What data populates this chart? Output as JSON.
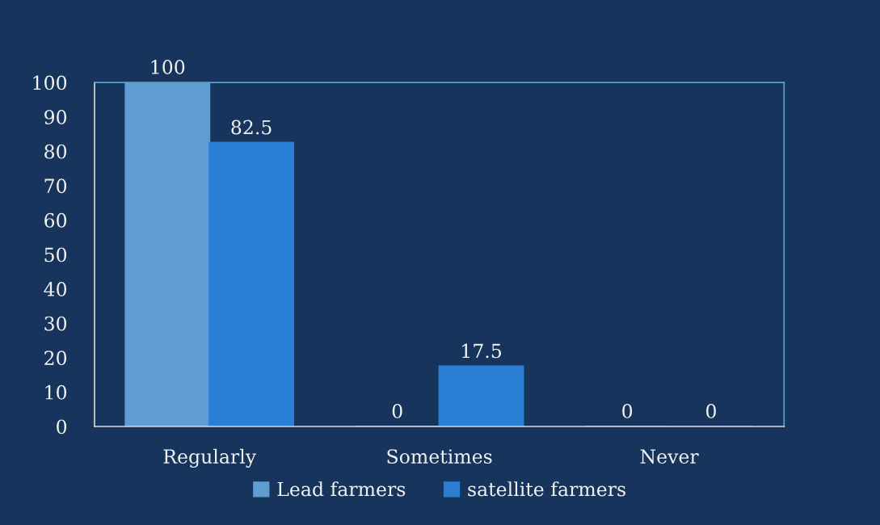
{
  "chart_data": {
    "type": "bar",
    "categories": [
      "Regularly",
      "Sometimes",
      "Never"
    ],
    "series": [
      {
        "name": "Lead farmers",
        "color": "#5f9dd1",
        "values": [
          100,
          0,
          0
        ]
      },
      {
        "name": "satellite farmers",
        "color": "#2a7fd5",
        "values": [
          82.5,
          17.5,
          0
        ]
      }
    ],
    "ylim": [
      0,
      100
    ],
    "yticks": [
      0,
      10,
      20,
      30,
      40,
      50,
      60,
      70,
      80,
      90,
      100
    ],
    "data_labels": true,
    "grid": false,
    "legend": "bottom"
  }
}
